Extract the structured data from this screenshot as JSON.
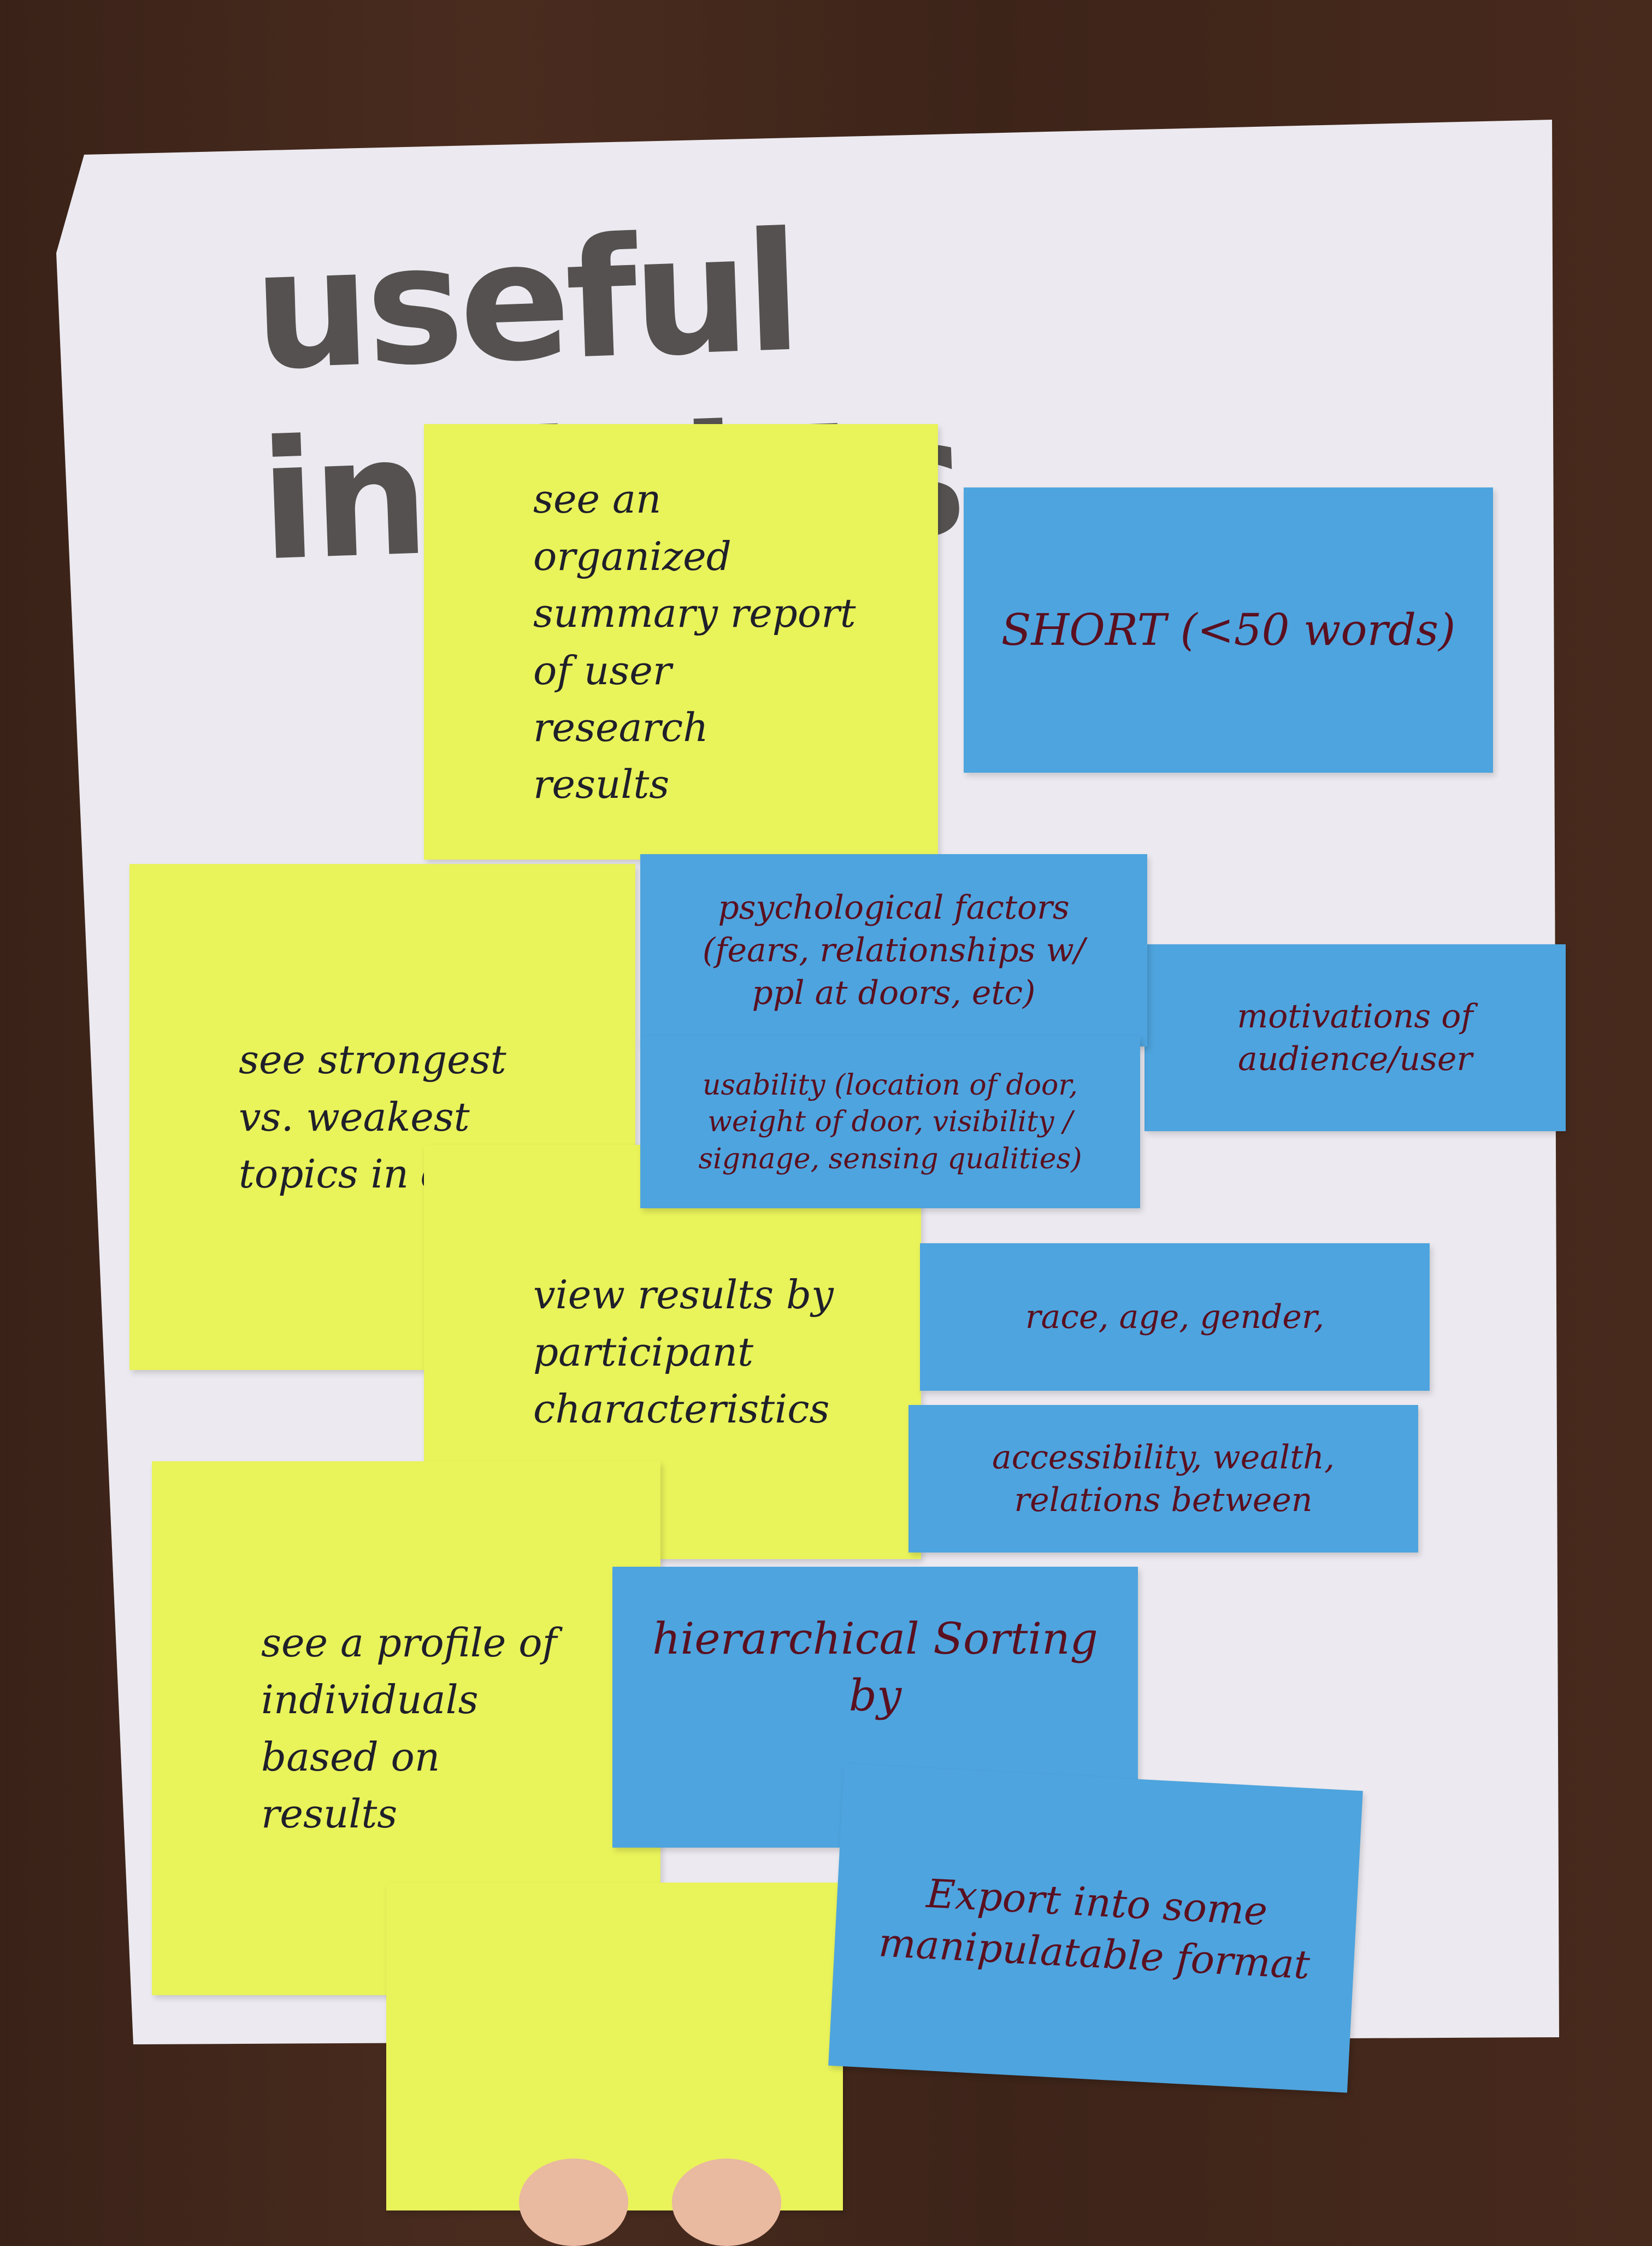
{
  "title": "useful insights",
  "yellow_notes": [
    {
      "text": "see an organized summary report of user research results"
    },
    {
      "text": "see strongest vs. weakest topics in data"
    },
    {
      "text": "view results by participant characteristics"
    },
    {
      "text": "see a profile of individuals based on results"
    }
  ],
  "blue_notes": [
    {
      "text": "SHORT (<50 words)"
    },
    {
      "text": "psychological factors (fears, relationships w/ ppl at doors, etc)"
    },
    {
      "text": "usability (location of door, weight of door, visibility / signage, sensing qualities)"
    },
    {
      "text": "motivations of audience/user"
    },
    {
      "text": "race, age, gender,"
    },
    {
      "text": "accessibility, wealth, relations between"
    },
    {
      "text": "hierarchical Sorting by"
    },
    {
      "text": "Export into some manipulatable format"
    }
  ]
}
